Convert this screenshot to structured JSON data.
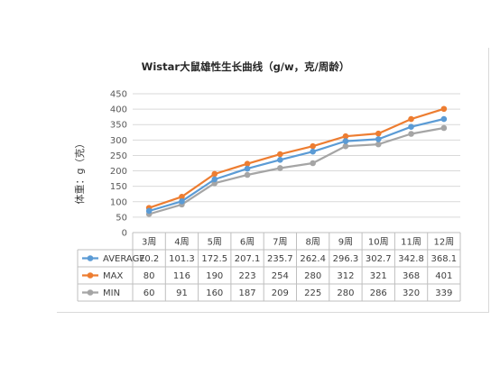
{
  "chart_data": {
    "type": "line",
    "title": "Wistar大鼠雄性生长曲线（g/w，克/周龄）",
    "ylabel": "体重：g（克）",
    "xlabel": "",
    "categories": [
      "3周",
      "4周",
      "5周",
      "6周",
      "7周",
      "8周",
      "9周",
      "10周",
      "11周",
      "12周"
    ],
    "ylim": [
      0,
      450
    ],
    "yticks": [
      0,
      50,
      100,
      150,
      200,
      250,
      300,
      350,
      400,
      450
    ],
    "grid": true,
    "legend": "data-table",
    "series": [
      {
        "name": "AVERAGE",
        "color": "#5b9bd5",
        "labels": [
          "70.2",
          "101.3",
          "172.5",
          "207.1",
          "235.7",
          "262.4",
          "296.3",
          "302.7",
          "342.8",
          "368.1"
        ],
        "values": [
          70.2,
          101.3,
          172.5,
          207.1,
          235.7,
          262.4,
          296.3,
          302.7,
          342.8,
          368.1
        ]
      },
      {
        "name": "MAX",
        "color": "#ed7d31",
        "labels": [
          "80",
          "116",
          "190",
          "223",
          "254",
          "280",
          "312",
          "321",
          "368",
          "401"
        ],
        "values": [
          80,
          116,
          190,
          223,
          254,
          280,
          312,
          321,
          368,
          401
        ]
      },
      {
        "name": "MIN",
        "color": "#a5a5a5",
        "labels": [
          "60",
          "91",
          "160",
          "187",
          "209",
          "225",
          "280",
          "286",
          "320",
          "339"
        ],
        "values": [
          60,
          91,
          160,
          187,
          209,
          225,
          280,
          286,
          320,
          339
        ]
      }
    ]
  }
}
